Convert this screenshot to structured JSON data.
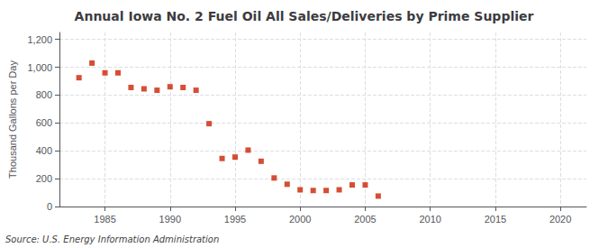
{
  "chart_data": {
    "type": "scatter",
    "title": "Annual Iowa No. 2 Fuel Oil All Sales/Deliveries by Prime Supplier",
    "ylabel": "Thousand Gallons per Day",
    "annotation": "Source: U.S. Energy Information Administration",
    "color": "#cc2200",
    "marker": "square",
    "grid": true,
    "xlim": [
      1981.5,
      2022
    ],
    "xticks": [
      1985,
      1990,
      1995,
      2000,
      2005,
      2010,
      2015,
      2020
    ],
    "ylim": [
      0,
      1250
    ],
    "yticks": [
      0,
      200,
      400,
      600,
      800,
      {
        "value": 1000,
        "label": "1,000"
      },
      {
        "value": 1200,
        "label": "1,200"
      }
    ],
    "x": [
      1983,
      1984,
      1985,
      1986,
      1987,
      1988,
      1989,
      1990,
      1991,
      1992,
      1993,
      1994,
      1995,
      1996,
      1997,
      1998,
      1999,
      2000,
      2001,
      2002,
      2003,
      2004,
      2005,
      2006
    ],
    "values": [
      925,
      1030,
      960,
      960,
      855,
      845,
      835,
      860,
      855,
      835,
      595,
      345,
      355,
      405,
      325,
      205,
      160,
      120,
      115,
      115,
      120,
      155,
      155,
      75
    ]
  }
}
